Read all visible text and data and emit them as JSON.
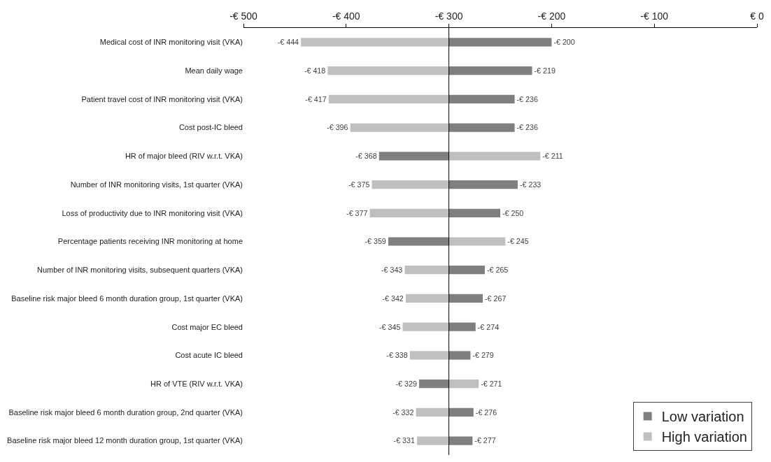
{
  "chart_data": {
    "type": "bar",
    "orientation": "horizontal",
    "categories": [
      "Medical cost of INR monitoring visit (VKA)",
      "Mean daily wage",
      "Patient travel cost of INR monitoring visit (VKA)",
      "Cost post-IC bleed",
      "HR of major bleed (RIV w.r.t. VKA)",
      "Number of INR monitoring visits, 1st quarter (VKA)",
      "Loss of productivity due to INR monitoring visit (VKA)",
      "Percentage patients receiving INR monitoring at home",
      "Number of INR monitoring visits, subsequent quarters (VKA)",
      "Baseline risk major bleed 6 month duration group, 1st quarter (VKA)",
      "Cost major EC bleed",
      "Cost acute IC bleed",
      "HR of VTE (RIV w.r.t. VKA)",
      "Baseline risk major bleed 6 month duration group, 2nd quarter (VKA)",
      "Baseline risk major bleed 12 month duration group, 1st quarter (VKA)"
    ],
    "series": [
      {
        "name": "Low variation",
        "color": "#7f7f7f",
        "base": [
          -300,
          -300,
          -300,
          -300,
          -300,
          -300,
          -300,
          -300,
          -300,
          -300,
          -300,
          -300,
          -300,
          -300,
          -300
        ],
        "values": [
          100,
          81,
          64,
          64,
          -68,
          67,
          50,
          -59,
          35,
          33,
          26,
          21,
          -29,
          24,
          23
        ],
        "value_labels": [
          "-€ 200",
          "-€ 219",
          "-€ 236",
          "-€ 236",
          "-€ 368",
          "-€ 233",
          "-€ 250",
          "-€ 359",
          "-€ 265",
          "-€ 267",
          "-€ 274",
          "-€ 279",
          "-€ 329",
          "-€ 276",
          "-€ 277"
        ]
      },
      {
        "name": "High variation",
        "color": "#bfbfbf",
        "base": [
          -300,
          -300,
          -300,
          -300,
          -300,
          -300,
          -300,
          -300,
          -300,
          -300,
          -300,
          -300,
          -300,
          -300,
          -300
        ],
        "values": [
          -144,
          -118,
          -117,
          -96,
          89,
          -75,
          -77,
          55,
          -43,
          -42,
          -45,
          -38,
          29,
          -32,
          -31
        ],
        "value_labels": [
          "-€ 444",
          "-€ 418",
          "-€ 417",
          "-€ 396",
          "-€ 211",
          "-€ 375",
          "-€ 377",
          "-€ 245",
          "-€ 343",
          "-€ 342",
          "-€ 345",
          "-€ 338",
          "-€ 271",
          "-€ 332",
          "-€ 331"
        ]
      }
    ],
    "xlim": [
      -500,
      0
    ],
    "xticks": [
      {
        "value": -500,
        "label": "-€ 500"
      },
      {
        "value": -400,
        "label": "-€ 400"
      },
      {
        "value": -300,
        "label": "-€ 300"
      },
      {
        "value": -200,
        "label": "-€ 200"
      },
      {
        "value": -100,
        "label": "-€ 100"
      },
      {
        "value": 0,
        "label": "€ 0"
      }
    ],
    "ref_lines": [
      {
        "axis": "x",
        "value": -300,
        "color": "#000000"
      }
    ],
    "legend": "bottom right"
  }
}
